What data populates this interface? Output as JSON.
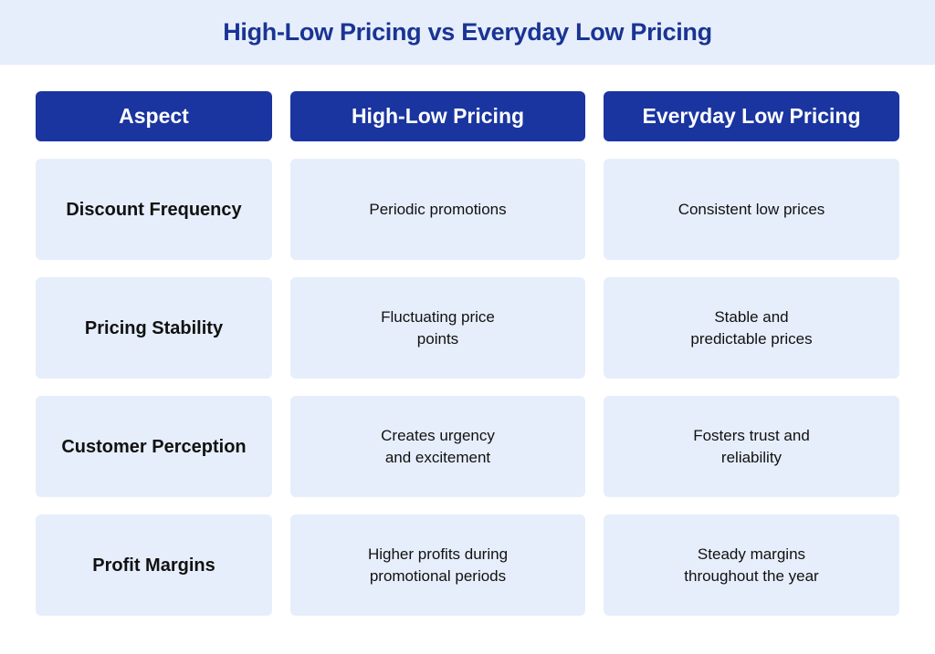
{
  "title": "High-Low Pricing vs Everyday Low Pricing",
  "headers": [
    "Aspect",
    "High-Low Pricing",
    "Everyday Low Pricing"
  ],
  "rows": [
    {
      "aspect": "Discount Frequency",
      "high_low": "Periodic promotions",
      "everyday_low": "Consistent low prices"
    },
    {
      "aspect": "Pricing Stability",
      "high_low": "Fluctuating price\npoints",
      "everyday_low": "Stable and\npredictable prices"
    },
    {
      "aspect": "Customer Perception",
      "high_low": "Creates urgency\nand excitement",
      "everyday_low": "Fosters trust and\nreliability"
    },
    {
      "aspect": "Profit Margins",
      "high_low": "Higher profits during\npromotional periods",
      "everyday_low": "Steady margins\nthroughout the year"
    }
  ],
  "colors": {
    "header_bg": "#1a35a0",
    "title_color": "#1a3494",
    "cell_bg": "#e6eefb"
  }
}
